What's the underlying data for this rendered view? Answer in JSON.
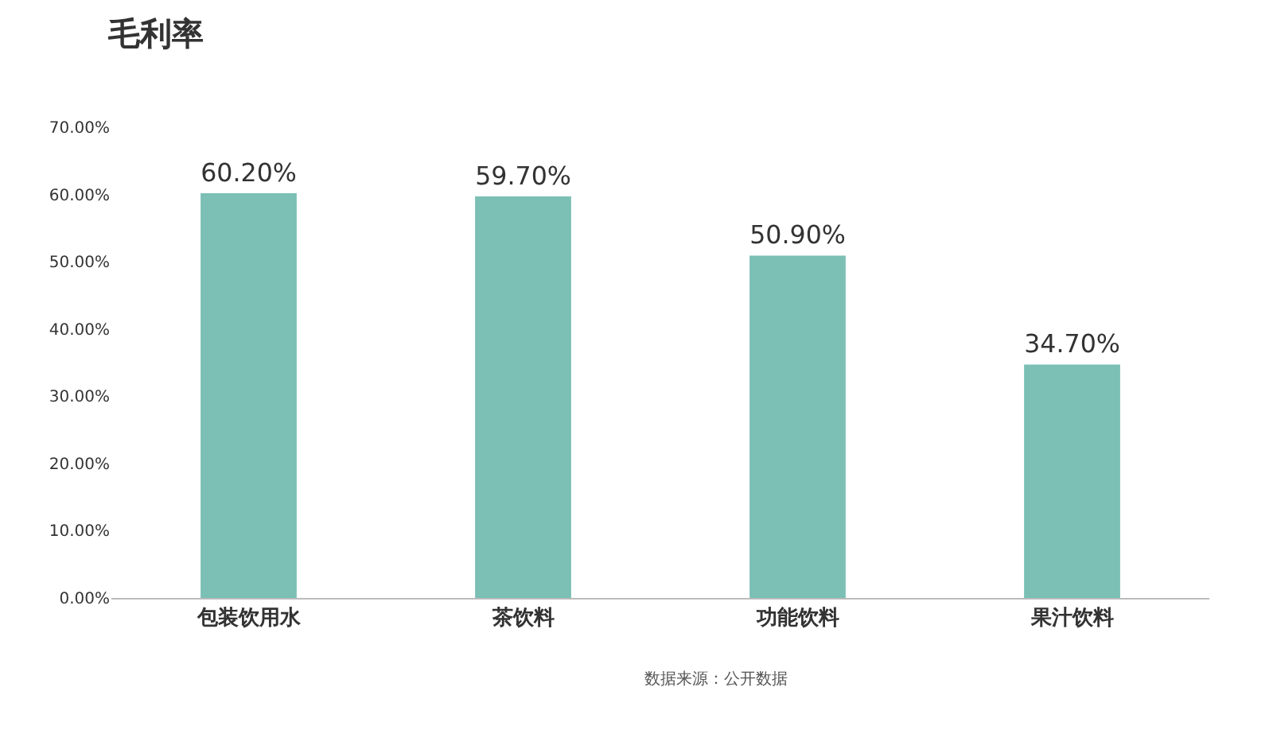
{
  "chart_data": {
    "type": "bar",
    "title": "毛利率",
    "categories": [
      "包装饮用水",
      "茶饮料",
      "功能饮料",
      "果汁饮料"
    ],
    "values": [
      60.2,
      59.7,
      50.9,
      34.7
    ],
    "value_labels": [
      "60.20%",
      "59.70%",
      "50.90%",
      "34.70%"
    ],
    "color": "#7bbfb5",
    "ylim": [
      0,
      70
    ],
    "yticks": [
      {
        "value": 0,
        "label": "0.00%"
      },
      {
        "value": 10,
        "label": "10.00%"
      },
      {
        "value": 20,
        "label": "20.00%"
      },
      {
        "value": 30,
        "label": "30.00%"
      },
      {
        "value": 40,
        "label": "40.00%"
      },
      {
        "value": 50,
        "label": "50.00%"
      },
      {
        "value": 60,
        "label": "60.00%"
      },
      {
        "value": 70,
        "label": "70.00%"
      }
    ],
    "grid": false,
    "annotations": [
      "数据来源：公开数据"
    ]
  }
}
